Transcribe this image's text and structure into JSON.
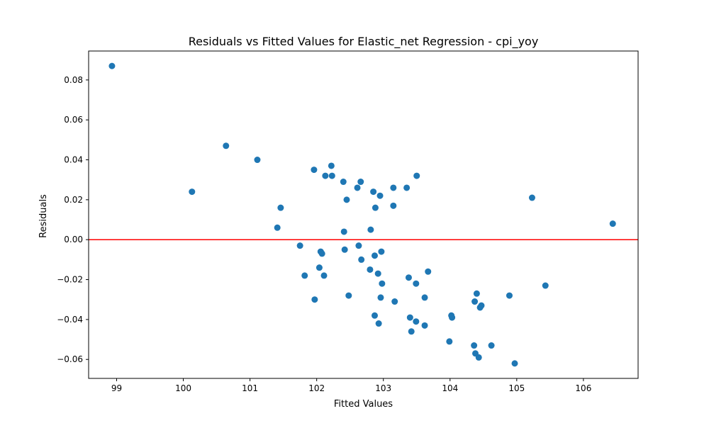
{
  "chart_data": {
    "type": "scatter",
    "title": "Residuals vs Fitted Values for Elastic_net Regression - cpi_yoy",
    "xlabel": "Fitted Values",
    "ylabel": "Residuals",
    "xlim": [
      98.58,
      106.82
    ],
    "ylim": [
      -0.0695,
      0.0945
    ],
    "xticks": [
      99,
      100,
      101,
      102,
      103,
      104,
      105,
      106
    ],
    "yticks": [
      -0.06,
      -0.04,
      -0.02,
      0.0,
      0.02,
      0.04,
      0.06,
      0.08
    ],
    "xtick_labels": [
      "99",
      "100",
      "101",
      "102",
      "103",
      "104",
      "105",
      "106"
    ],
    "ytick_labels": [
      "−0.06",
      "−0.04",
      "−0.02",
      "0.00",
      "0.02",
      "0.04",
      "0.06",
      "0.08"
    ],
    "reference_line": {
      "y": 0.0,
      "color": "#ff0000"
    },
    "point_color": "#1f77b4",
    "grid": false,
    "points": [
      {
        "x": 98.93,
        "y": 0.087
      },
      {
        "x": 100.13,
        "y": 0.024
      },
      {
        "x": 100.64,
        "y": 0.047
      },
      {
        "x": 101.11,
        "y": 0.04
      },
      {
        "x": 101.41,
        "y": 0.006
      },
      {
        "x": 101.46,
        "y": 0.016
      },
      {
        "x": 101.75,
        "y": -0.003
      },
      {
        "x": 101.82,
        "y": -0.018
      },
      {
        "x": 101.96,
        "y": 0.035
      },
      {
        "x": 101.97,
        "y": -0.03
      },
      {
        "x": 102.04,
        "y": -0.014
      },
      {
        "x": 102.06,
        "y": -0.006
      },
      {
        "x": 102.08,
        "y": -0.007
      },
      {
        "x": 102.11,
        "y": -0.018
      },
      {
        "x": 102.13,
        "y": 0.032
      },
      {
        "x": 102.22,
        "y": 0.037
      },
      {
        "x": 102.23,
        "y": 0.032
      },
      {
        "x": 102.4,
        "y": 0.029
      },
      {
        "x": 102.41,
        "y": 0.004
      },
      {
        "x": 102.42,
        "y": -0.005
      },
      {
        "x": 102.45,
        "y": 0.02
      },
      {
        "x": 102.48,
        "y": -0.028
      },
      {
        "x": 102.61,
        "y": 0.026
      },
      {
        "x": 102.63,
        "y": -0.003
      },
      {
        "x": 102.66,
        "y": 0.029
      },
      {
        "x": 102.67,
        "y": -0.01
      },
      {
        "x": 102.8,
        "y": -0.015
      },
      {
        "x": 102.81,
        "y": 0.005
      },
      {
        "x": 102.85,
        "y": 0.024
      },
      {
        "x": 102.87,
        "y": -0.008
      },
      {
        "x": 102.87,
        "y": -0.038
      },
      {
        "x": 102.88,
        "y": 0.016
      },
      {
        "x": 102.92,
        "y": -0.017
      },
      {
        "x": 102.93,
        "y": -0.042
      },
      {
        "x": 102.95,
        "y": 0.022
      },
      {
        "x": 102.96,
        "y": -0.029
      },
      {
        "x": 102.97,
        "y": -0.006
      },
      {
        "x": 102.98,
        "y": -0.022
      },
      {
        "x": 103.15,
        "y": 0.026
      },
      {
        "x": 103.15,
        "y": 0.017
      },
      {
        "x": 103.17,
        "y": -0.031
      },
      {
        "x": 103.35,
        "y": 0.026
      },
      {
        "x": 103.38,
        "y": -0.019
      },
      {
        "x": 103.4,
        "y": -0.039
      },
      {
        "x": 103.42,
        "y": -0.046
      },
      {
        "x": 103.49,
        "y": -0.022
      },
      {
        "x": 103.49,
        "y": -0.041
      },
      {
        "x": 103.5,
        "y": 0.032
      },
      {
        "x": 103.62,
        "y": -0.029
      },
      {
        "x": 103.62,
        "y": -0.043
      },
      {
        "x": 103.67,
        "y": -0.016
      },
      {
        "x": 103.99,
        "y": -0.051
      },
      {
        "x": 104.02,
        "y": -0.038
      },
      {
        "x": 104.03,
        "y": -0.039
      },
      {
        "x": 104.36,
        "y": -0.053
      },
      {
        "x": 104.37,
        "y": -0.031
      },
      {
        "x": 104.38,
        "y": -0.057
      },
      {
        "x": 104.4,
        "y": -0.027
      },
      {
        "x": 104.43,
        "y": -0.059
      },
      {
        "x": 104.45,
        "y": -0.034
      },
      {
        "x": 104.47,
        "y": -0.033
      },
      {
        "x": 104.62,
        "y": -0.053
      },
      {
        "x": 104.89,
        "y": -0.028
      },
      {
        "x": 104.97,
        "y": -0.062
      },
      {
        "x": 105.23,
        "y": 0.021
      },
      {
        "x": 105.43,
        "y": -0.023
      },
      {
        "x": 106.44,
        "y": 0.008
      }
    ]
  }
}
